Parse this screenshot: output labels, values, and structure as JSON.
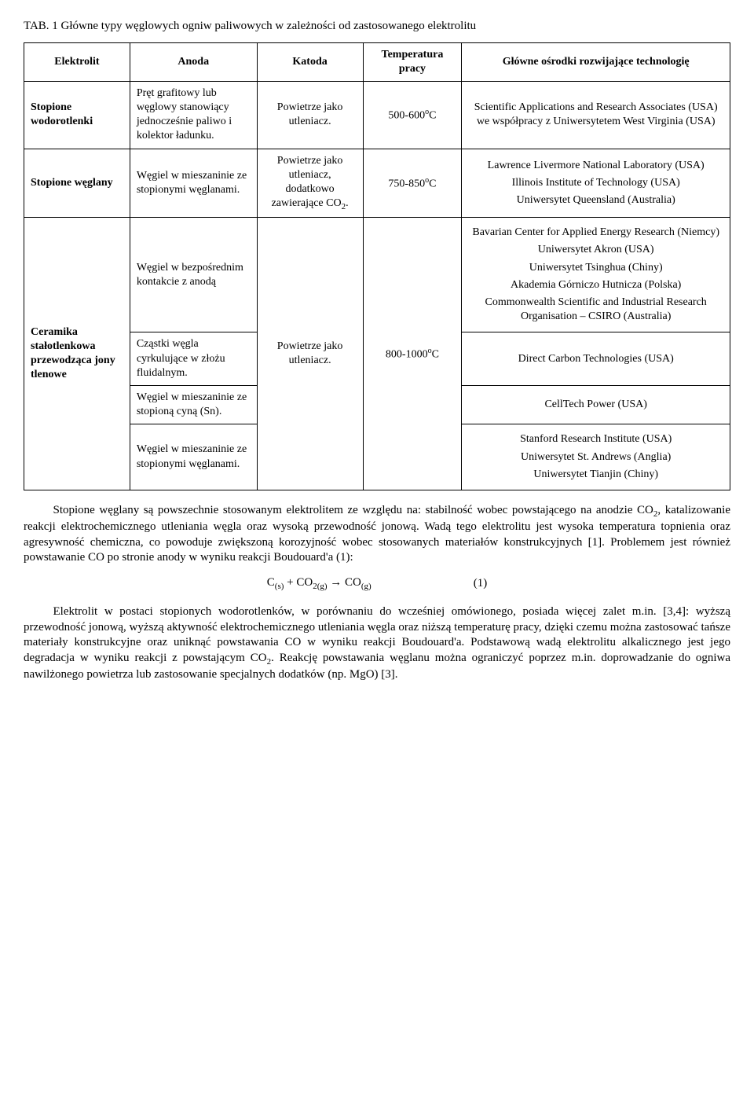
{
  "caption": "TAB. 1 Główne typy węglowych ogniw paliwowych w zależności od zastosowanego elektrolitu",
  "headers": {
    "c1": "Elektrolit",
    "c2": "Anoda",
    "c3": "Katoda",
    "c4": "Temperatura pracy",
    "c5": "Główne ośrodki rozwijające technologię"
  },
  "row1": {
    "elek": "Stopione wodorotlenki",
    "anoda": "Pręt grafitowy lub węglowy stanowiący jednocześnie paliwo i kolektor ładunku.",
    "katoda": "Powietrze jako utleniacz.",
    "temp": "500-600°C",
    "osrodki": "Scientific Applications and Research Associates (USA) we współpracy z Uniwersytetem West Virginia (USA)"
  },
  "row2": {
    "elek": "Stopione węglany",
    "anoda": "Węgiel w mieszaninie ze stopionymi węglanami.",
    "katoda": "Powietrze jako utleniacz, dodatkowo zawierające CO₂.",
    "temp": "750-850°C",
    "os_a": "Lawrence Livermore National Laboratory (USA)",
    "os_b": "Illinois Institute of Technology (USA)",
    "os_c": "Uniwersytet Queensland (Australia)"
  },
  "row3": {
    "elek": "Ceramika stałotlenkowa przewodząca jony tlenowe",
    "katoda": "Powietrze jako utleniacz.",
    "temp": "800-1000°C",
    "an_a": "Węgiel w bezpośrednim kontakcie z anodą",
    "an_b": "Cząstki węgla cyrkulujące w złożu fluidalnym.",
    "an_c": "Węgiel w mieszaninie ze stopioną cyną (Sn).",
    "an_d": "Węgiel w mieszaninie ze stopionymi węglanami.",
    "os_a1": "Bavarian Center for Applied Energy Research (Niemcy)",
    "os_a2": "Uniwersytet Akron (USA)",
    "os_a3": "Uniwersytet Tsinghua (Chiny)",
    "os_a4": "Akademia Górniczo Hutnicza (Polska)",
    "os_a5": "Commonwealth Scientific and Industrial Research Organisation – CSIRO (Australia)",
    "os_b": "Direct Carbon Technologies (USA)",
    "os_c": "CellTech Power (USA)",
    "os_d1": "Stanford Research Institute (USA)",
    "os_d2": "Uniwersytet St. Andrews (Anglia)",
    "os_d3": "Uniwersytet Tianjin (Chiny)"
  },
  "para1": "Stopione węglany są powszechnie stosowanym elektrolitem ze względu na: stabilność wobec powstającego na anodzie CO₂, katalizowanie reakcji elektrochemicznego utleniania węgla oraz wysoką przewodność jonową. Wadą tego elektrolitu jest wysoka temperatura topnienia oraz agresywność chemiczna, co powoduje zwiększoną korozyjność wobec stosowanych materiałów konstrukcyjnych [1]. Problemem jest również powstawanie CO po stronie anody w wyniku reakcji Boudouard'a (1):",
  "eq": "C₍ₛ₎ + CO₂₍g₎ → CO₍g₎",
  "eqnum": "(1)",
  "para2": "Elektrolit w postaci stopionych wodorotlenków, w porównaniu do wcześniej omówionego, posiada więcej zalet m.in. [3,4]: wyższą przewodność jonową, wyższą aktywność elektrochemicznego utleniania węgla oraz niższą temperaturę pracy, dzięki czemu można zastosować tańsze materiały konstrukcyjne oraz uniknąć powstawania CO w wyniku reakcji Boudouard'a. Podstawową wadą elektrolitu alkalicznego jest jego degradacja w wyniku reakcji z powstającym CO₂. Reakcję powstawania węglanu można ograniczyć poprzez m.in. doprowadzanie do ogniwa nawilżonego powietrza lub zastosowanie specjalnych dodatków (np. MgO) [3]."
}
